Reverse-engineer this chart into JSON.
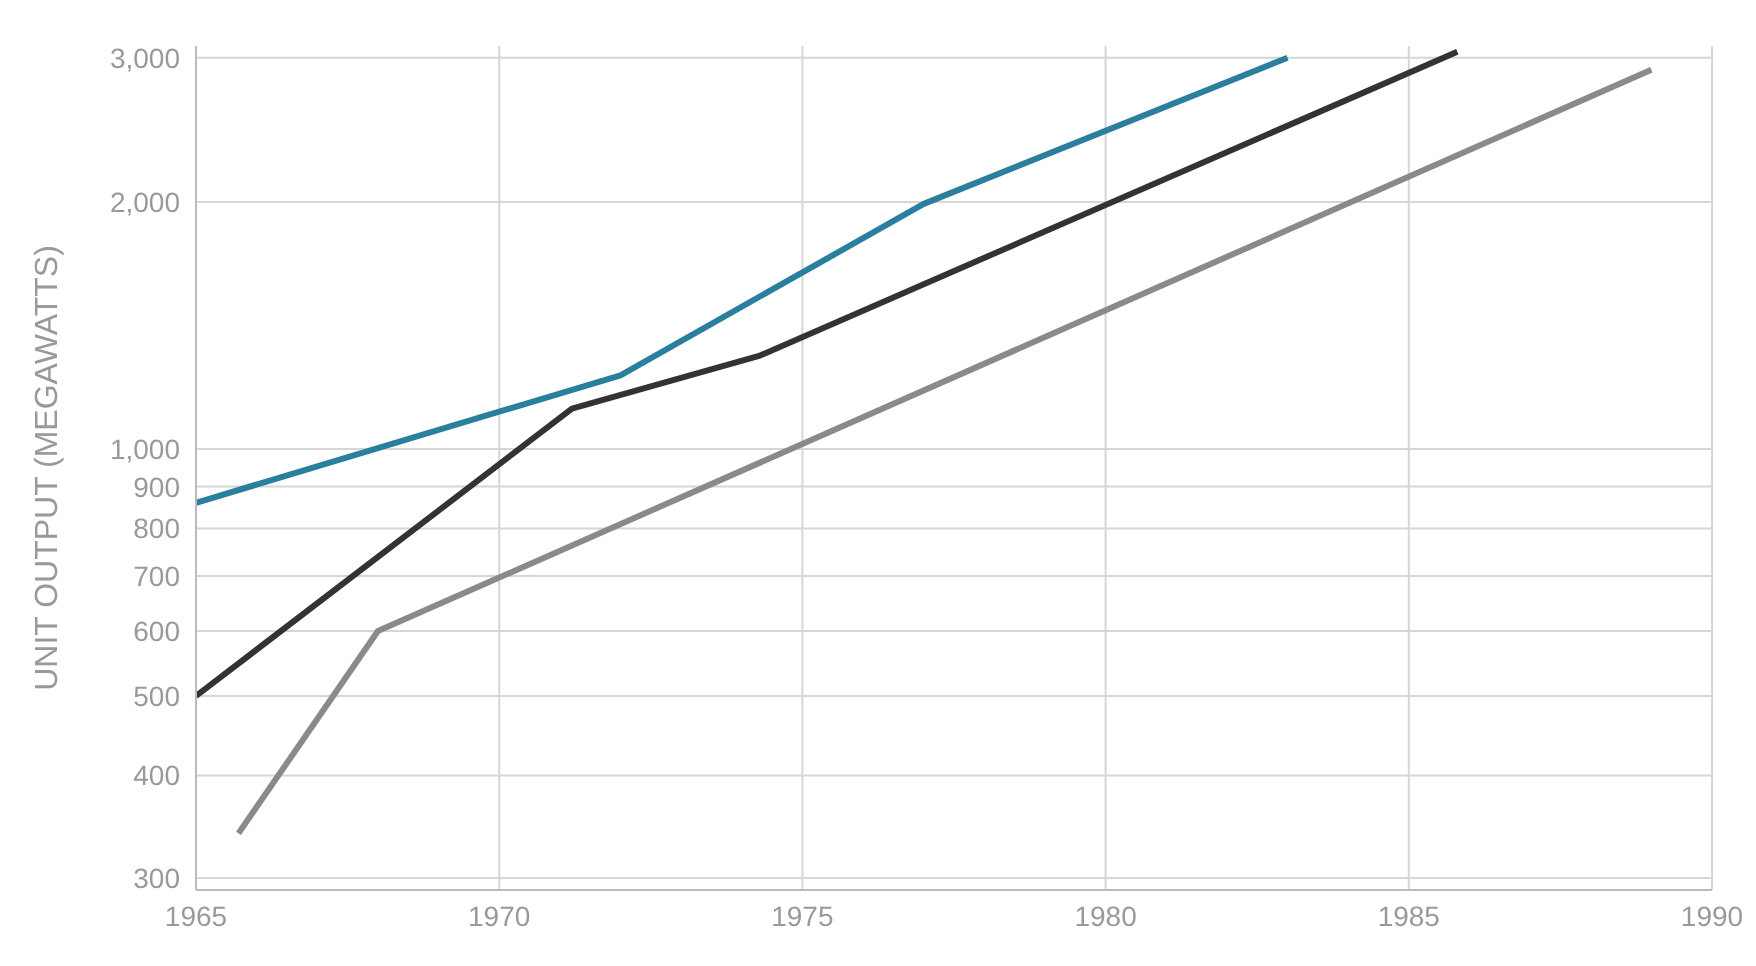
{
  "chart_data": {
    "type": "line",
    "ylabel": "UNIT OUTPUT (MEGAWATTS)",
    "log": "y",
    "grid": true,
    "marker": "none",
    "line_style": "solid",
    "xlim": [
      1965,
      1990
    ],
    "xticks": [
      1965,
      1970,
      1975,
      1980,
      1985,
      1990
    ],
    "ylim": [
      290,
      3100
    ],
    "yticks": [
      300,
      400,
      500,
      600,
      700,
      800,
      900,
      {
        "value": 1000,
        "label": "1,000"
      },
      {
        "value": 2000,
        "label": "2,000"
      },
      {
        "value": 3000,
        "label": "3,000"
      }
    ],
    "series": [
      {
        "color": "#2a7f9e",
        "x": [
          1965,
          1972,
          1977,
          1983
        ],
        "values": [
          860,
          1230,
          1990,
          3000
        ]
      },
      {
        "color": "#333333",
        "x": [
          1965,
          1971.2,
          1974.3,
          1985.8
        ],
        "values": [
          500,
          1120,
          1300,
          3050
        ]
      },
      {
        "color": "#8a8a8a",
        "x": [
          1965.7,
          1968,
          1989
        ],
        "values": [
          340,
          600,
          2900
        ]
      }
    ]
  }
}
